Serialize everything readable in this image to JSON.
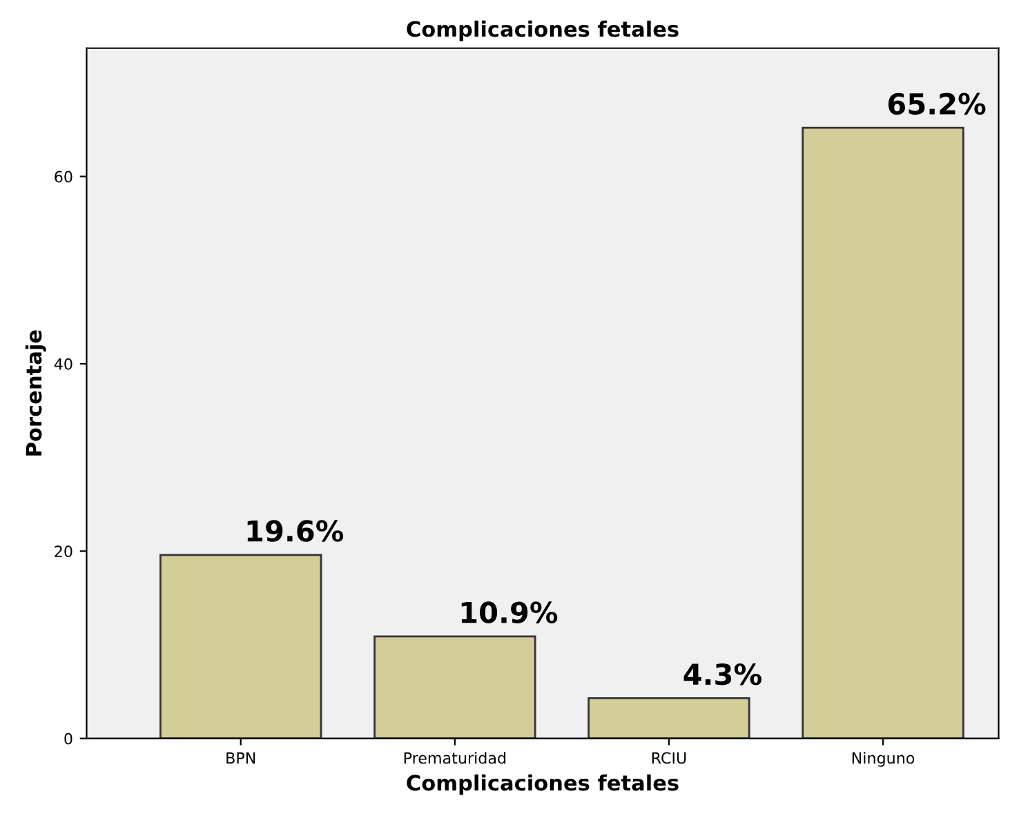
{
  "chart_data": {
    "type": "bar",
    "title": "Complicaciones fetales",
    "xlabel": "Complicaciones fetales",
    "ylabel": "Porcentaje",
    "categories": [
      "BPN",
      "Prematuridad",
      "RCIU",
      "Ninguno"
    ],
    "values": [
      19.6,
      10.9,
      4.3,
      65.2
    ],
    "value_labels": [
      "19.6%",
      "10.9%",
      "4.3%",
      "65.2%"
    ],
    "color": "#d3ce97",
    "ylim": [
      0,
      73.7
    ],
    "yticks": [
      0,
      20,
      40,
      60
    ],
    "grid": false,
    "legend": false
  }
}
